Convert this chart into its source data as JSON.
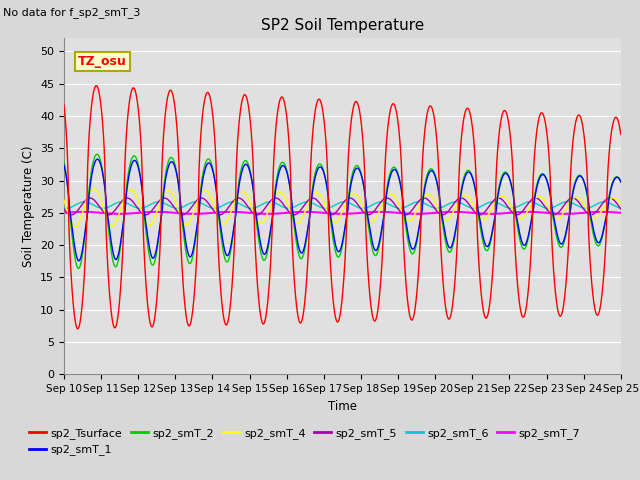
{
  "title": "SP2 Soil Temperature",
  "subtitle": "No data for f_sp2_smT_3",
  "ylabel": "Soil Temperature (C)",
  "xlabel": "Time",
  "tz_label": "TZ_osu",
  "ylim": [
    0,
    52
  ],
  "yticks": [
    0,
    5,
    10,
    15,
    20,
    25,
    30,
    35,
    40,
    45,
    50
  ],
  "xticklabels": [
    "Sep 10",
    "Sep 11",
    "Sep 12",
    "Sep 13",
    "Sep 14",
    "Sep 15",
    "Sep 16",
    "Sep 17",
    "Sep 18",
    "Sep 19",
    "Sep 20",
    "Sep 21",
    "Sep 22",
    "Sep 23",
    "Sep 24",
    "Sep 25"
  ],
  "series_colors": {
    "sp2_Tsurface": "#ff0000",
    "sp2_smT_1": "#0000ff",
    "sp2_smT_2": "#00cc00",
    "sp2_smT_4": "#ffff00",
    "sp2_smT_5": "#aa00aa",
    "sp2_smT_6": "#00cccc",
    "sp2_smT_7": "#ff00ff"
  },
  "bg_color": "#d8d8d8",
  "plot_bg_color": "#e0e0e0",
  "grid_color": "#ffffff",
  "n_days": 15,
  "points_per_day": 144
}
